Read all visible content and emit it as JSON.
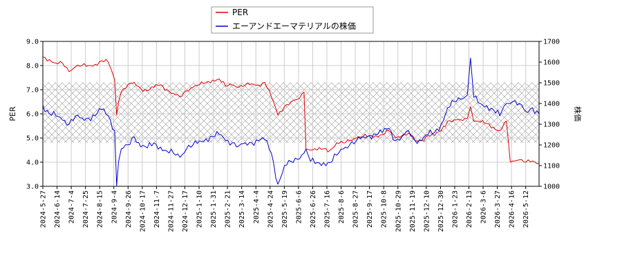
{
  "chart_data": {
    "type": "line",
    "legend": {
      "placement": "top-center",
      "entries": [
        "PER",
        "エーアンドエーマテリアルの株価"
      ]
    },
    "grid": true,
    "hatched_band": {
      "axis": "left",
      "from": 4.8,
      "to": 7.3
    },
    "xlabel": "",
    "x_ticks": [
      "2024-5-27",
      "2024-6-14",
      "2024-7-4",
      "2024-7-25",
      "2024-8-15",
      "2024-9-4",
      "2024-9-26",
      "2024-10-17",
      "2024-11-7",
      "2024-11-27",
      "2024-12-17",
      "2025-1-10",
      "2025-1-31",
      "2025-2-21",
      "2025-3-14",
      "2025-4-4",
      "2025-4-24",
      "2025-5-19",
      "2025-6-6",
      "2025-6-26",
      "2025-7-16",
      "2025-8-6",
      "2025-8-27",
      "2025-9-17",
      "2025-10-8",
      "2025-10-29",
      "2025-11-19",
      "2025-12-10",
      "2025-12-30",
      "2026-1-23",
      "2026-2-13",
      "2026-3-6",
      "2026-3-27",
      "2026-4-16",
      "2026-5-12"
    ],
    "y_left": {
      "label": "PER",
      "lim": [
        3.0,
        9.0
      ],
      "ticks": [
        "3.0",
        "4.0",
        "5.0",
        "6.0",
        "7.0",
        "8.0",
        "9.0"
      ]
    },
    "y_right": {
      "label": "株価",
      "lim": [
        1000,
        1700
      ],
      "ticks": [
        "1000",
        "1100",
        "1200",
        "1300",
        "1400",
        "1500",
        "1600",
        "1700"
      ]
    },
    "series": [
      {
        "name": "PER",
        "axis": "left",
        "color": "#dd0000",
        "values": [
          [
            0,
            8.35
          ],
          [
            1,
            8.25
          ],
          [
            2,
            8.1
          ],
          [
            3,
            8.1
          ],
          [
            4,
            7.75
          ],
          [
            5,
            7.95
          ],
          [
            6,
            8.0
          ],
          [
            7,
            8.0
          ],
          [
            8,
            8.05
          ],
          [
            9,
            8.2
          ],
          [
            10,
            8.15
          ],
          [
            11,
            7.4
          ],
          [
            11.3,
            5.95
          ],
          [
            11.6,
            6.5
          ],
          [
            12,
            6.9
          ],
          [
            13,
            7.2
          ],
          [
            14,
            7.3
          ],
          [
            15,
            7.05
          ],
          [
            16,
            6.95
          ],
          [
            17,
            7.1
          ],
          [
            18,
            7.2
          ],
          [
            19,
            7.0
          ],
          [
            20,
            6.85
          ],
          [
            21,
            6.7
          ],
          [
            22,
            6.95
          ],
          [
            23,
            7.1
          ],
          [
            24,
            7.2
          ],
          [
            25,
            7.3
          ],
          [
            26,
            7.4
          ],
          [
            27,
            7.45
          ],
          [
            28,
            7.15
          ],
          [
            29,
            7.2
          ],
          [
            30,
            7.1
          ],
          [
            31,
            7.2
          ],
          [
            32,
            7.25
          ],
          [
            33,
            7.2
          ],
          [
            34,
            7.3
          ],
          [
            35,
            6.7
          ],
          [
            36,
            5.95
          ],
          [
            37,
            6.3
          ],
          [
            38,
            6.5
          ],
          [
            39,
            6.6
          ],
          [
            40,
            6.9
          ],
          [
            40.3,
            4.55
          ],
          [
            41,
            4.5
          ],
          [
            42,
            4.5
          ],
          [
            43,
            4.55
          ],
          [
            44,
            4.5
          ],
          [
            45,
            4.8
          ],
          [
            46,
            4.8
          ],
          [
            47,
            4.9
          ],
          [
            48,
            5.0
          ],
          [
            49,
            5.05
          ],
          [
            50,
            5.1
          ],
          [
            51,
            5.1
          ],
          [
            52,
            5.15
          ],
          [
            53,
            5.3
          ],
          [
            54,
            5.0
          ],
          [
            55,
            5.1
          ],
          [
            56,
            5.2
          ],
          [
            57,
            4.9
          ],
          [
            58,
            4.9
          ],
          [
            59,
            5.1
          ],
          [
            60,
            5.1
          ],
          [
            61,
            5.3
          ],
          [
            62,
            5.7
          ],
          [
            63,
            5.75
          ],
          [
            64,
            5.75
          ],
          [
            65,
            5.8
          ],
          [
            65.5,
            6.3
          ],
          [
            66,
            5.7
          ],
          [
            67,
            5.65
          ],
          [
            68,
            5.6
          ],
          [
            69,
            5.45
          ],
          [
            70,
            5.3
          ],
          [
            71,
            5.7
          ],
          [
            71.6,
            4.0
          ],
          [
            72,
            4.05
          ],
          [
            73,
            4.1
          ],
          [
            74,
            4.0
          ],
          [
            75,
            4.05
          ],
          [
            76,
            3.95
          ]
        ]
      },
      {
        "name": "エーアンドエーマテリアルの株価",
        "axis": "right",
        "color": "#0000cc",
        "values": [
          [
            0,
            1390
          ],
          [
            1,
            1350
          ],
          [
            2,
            1340
          ],
          [
            3,
            1320
          ],
          [
            4,
            1300
          ],
          [
            5,
            1340
          ],
          [
            6,
            1330
          ],
          [
            7,
            1330
          ],
          [
            8,
            1340
          ],
          [
            9,
            1370
          ],
          [
            10,
            1340
          ],
          [
            11,
            1270
          ],
          [
            11.3,
            1003
          ],
          [
            11.6,
            1120
          ],
          [
            12,
            1180
          ],
          [
            13,
            1200
          ],
          [
            14,
            1240
          ],
          [
            15,
            1190
          ],
          [
            16,
            1185
          ],
          [
            17,
            1210
          ],
          [
            18,
            1190
          ],
          [
            19,
            1170
          ],
          [
            20,
            1160
          ],
          [
            21,
            1140
          ],
          [
            22,
            1180
          ],
          [
            23,
            1200
          ],
          [
            24,
            1220
          ],
          [
            25,
            1230
          ],
          [
            26,
            1240
          ],
          [
            27,
            1250
          ],
          [
            28,
            1220
          ],
          [
            29,
            1210
          ],
          [
            30,
            1195
          ],
          [
            31,
            1210
          ],
          [
            32,
            1210
          ],
          [
            33,
            1220
          ],
          [
            34,
            1225
          ],
          [
            35,
            1160
          ],
          [
            36,
            1010
          ],
          [
            37,
            1100
          ],
          [
            38,
            1120
          ],
          [
            39,
            1130
          ],
          [
            40,
            1160
          ],
          [
            40.3,
            1180
          ],
          [
            41,
            1120
          ],
          [
            42,
            1115
          ],
          [
            43,
            1115
          ],
          [
            44,
            1115
          ],
          [
            45,
            1150
          ],
          [
            46,
            1180
          ],
          [
            47,
            1200
          ],
          [
            48,
            1220
          ],
          [
            49,
            1240
          ],
          [
            50,
            1245
          ],
          [
            51,
            1250
          ],
          [
            52,
            1260
          ],
          [
            53,
            1280
          ],
          [
            54,
            1220
          ],
          [
            55,
            1240
          ],
          [
            56,
            1270
          ],
          [
            57,
            1220
          ],
          [
            58,
            1220
          ],
          [
            59,
            1250
          ],
          [
            60,
            1260
          ],
          [
            61,
            1300
          ],
          [
            62,
            1380
          ],
          [
            63,
            1410
          ],
          [
            64,
            1420
          ],
          [
            65,
            1440
          ],
          [
            65.5,
            1620
          ],
          [
            66,
            1430
          ],
          [
            67,
            1400
          ],
          [
            68,
            1390
          ],
          [
            69,
            1370
          ],
          [
            70,
            1340
          ],
          [
            71,
            1400
          ],
          [
            71.6,
            1400
          ],
          [
            72,
            1410
          ],
          [
            73,
            1400
          ],
          [
            74,
            1360
          ],
          [
            75,
            1380
          ],
          [
            76,
            1350
          ]
        ]
      }
    ]
  }
}
